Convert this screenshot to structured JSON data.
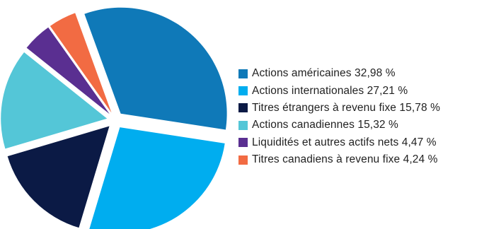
{
  "chart_data": {
    "type": "pie",
    "slices": [
      {
        "label": "Actions américaines",
        "value": 32.98,
        "display": "32,98 %",
        "color": "#0f79b8"
      },
      {
        "label": "Actions internationales",
        "value": 27.21,
        "display": "27,21 %",
        "color": "#00adef"
      },
      {
        "label": "Titres étrangers à revenu fixe",
        "value": 15.78,
        "display": "15,78 %",
        "color": "#0b1a45"
      },
      {
        "label": "Actions canadiennes",
        "value": 15.32,
        "display": "15,32 %",
        "color": "#54c6d7"
      },
      {
        "label": "Liquidités et autres actifs nets",
        "value": 4.47,
        "display": "4,47 %",
        "color": "#5a2f91"
      },
      {
        "label": "Titres canadiens à revenu fixe",
        "value": 4.24,
        "display": "4,24 %",
        "color": "#f26b43"
      }
    ],
    "legend_position": "right",
    "exploded": true
  },
  "legend": [
    {
      "text": "Actions américaines 32,98 %"
    },
    {
      "text": "Actions internationales 27,21 %"
    },
    {
      "text": "Titres étrangers à revenu fixe 15,78 %"
    },
    {
      "text": "Actions canadiennes 15,32 %"
    },
    {
      "text": "Liquidités et autres actifs nets 4,47 %"
    },
    {
      "text": "Titres canadiens à revenu fixe 4,24 %"
    }
  ]
}
